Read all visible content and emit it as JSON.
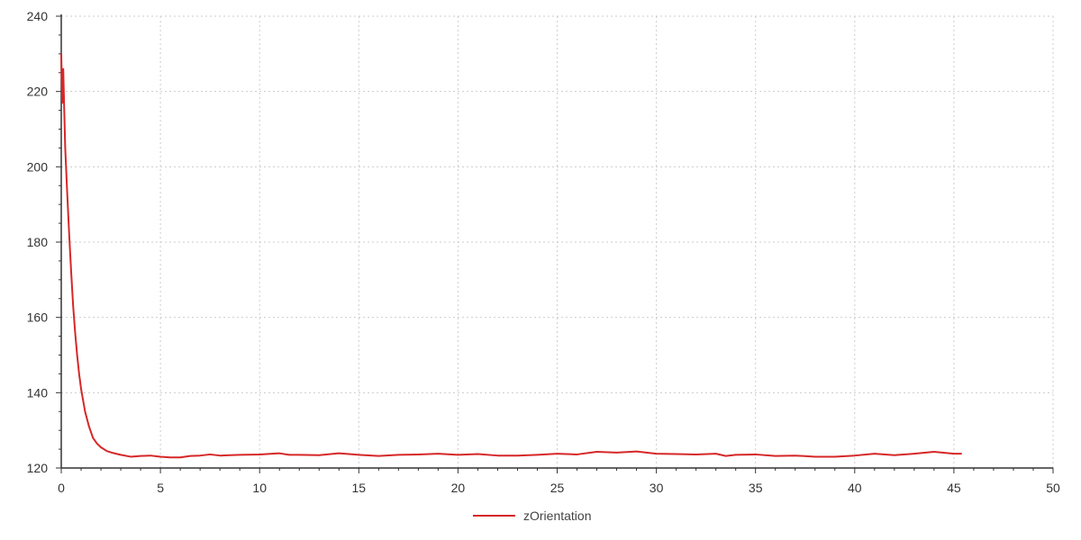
{
  "chart_data": {
    "type": "line",
    "title": "",
    "xlabel": "",
    "ylabel": "",
    "xlim": [
      0,
      50
    ],
    "ylim": [
      120,
      240
    ],
    "x_ticks": [
      0,
      5,
      10,
      15,
      20,
      25,
      30,
      35,
      40,
      45,
      50
    ],
    "y_ticks": [
      120,
      140,
      160,
      180,
      200,
      220,
      240
    ],
    "grid": true,
    "legend_position": "bottom-center",
    "series": [
      {
        "name": "zOrientation",
        "color": "#d62728",
        "x": [
          0,
          0.05,
          0.1,
          0.15,
          0.2,
          0.3,
          0.4,
          0.5,
          0.6,
          0.7,
          0.8,
          0.9,
          1.0,
          1.2,
          1.4,
          1.6,
          1.8,
          2.0,
          2.3,
          2.6,
          3.0,
          3.5,
          4.0,
          4.5,
          5.0,
          5.5,
          6.0,
          6.5,
          7.0,
          7.5,
          8.0,
          8.5,
          9.0,
          10.0,
          11.0,
          11.5,
          12.0,
          13.0,
          14.0,
          15.0,
          16.0,
          17.0,
          18.0,
          19.0,
          20.0,
          21.0,
          22.0,
          23.0,
          24.0,
          25.0,
          26.0,
          27.0,
          28.0,
          29.0,
          30.0,
          31.0,
          32.0,
          33.0,
          33.5,
          34.0,
          35.0,
          36.0,
          37.0,
          38.0,
          39.0,
          40.0,
          41.0,
          42.0,
          43.0,
          44.0,
          45.0,
          45.4
        ],
        "values": [
          230,
          217,
          226,
          215,
          205,
          193,
          182,
          172,
          163,
          156,
          150,
          145,
          141,
          135,
          131,
          128,
          126.5,
          125.5,
          124.5,
          124,
          123.5,
          123,
          123.2,
          123.3,
          123,
          122.8,
          122.8,
          123.2,
          123.3,
          123.6,
          123.3,
          123.4,
          123.5,
          123.6,
          123.9,
          123.5,
          123.5,
          123.4,
          123.9,
          123.5,
          123.2,
          123.5,
          123.6,
          123.8,
          123.5,
          123.7,
          123.3,
          123.3,
          123.5,
          123.8,
          123.6,
          124.3,
          124.1,
          124.4,
          123.8,
          123.7,
          123.6,
          123.8,
          123.2,
          123.5,
          123.6,
          123.2,
          123.3,
          123.0,
          123.0,
          123.3,
          123.8,
          123.4,
          123.8,
          124.3,
          123.8,
          123.8
        ]
      }
    ]
  }
}
